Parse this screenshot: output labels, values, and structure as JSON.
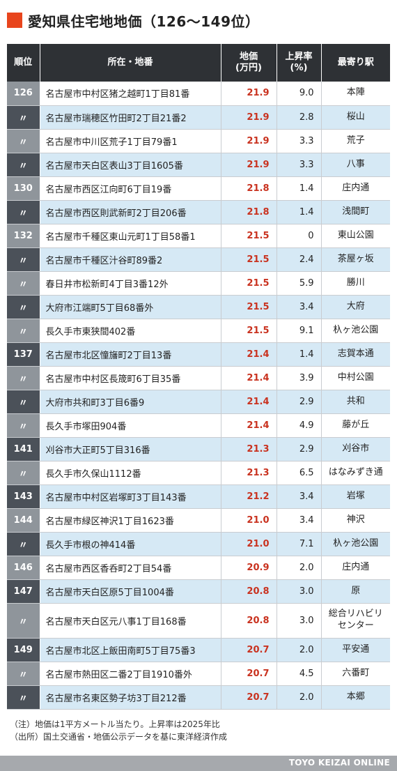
{
  "title": "愛知県住宅地地価（126～149位）",
  "headers": {
    "rank": "順位",
    "address": "所在・地番",
    "price_line1": "地価",
    "price_line2": "(万円)",
    "rate_line1": "上昇率",
    "rate_line2": "(%)",
    "station": "最寄り駅"
  },
  "rows": [
    {
      "rank": "126",
      "address": "名古屋市中村区猪之越町1丁目81番",
      "price": "21.9",
      "rate": "9.0",
      "station": "本陣"
    },
    {
      "rank": "〃",
      "address": "名古屋市瑞穂区竹田町2丁目21番2",
      "price": "21.9",
      "rate": "2.8",
      "station": "桜山"
    },
    {
      "rank": "〃",
      "address": "名古屋市中川区荒子1丁目79番1",
      "price": "21.9",
      "rate": "3.3",
      "station": "荒子"
    },
    {
      "rank": "〃",
      "address": "名古屋市天白区表山3丁目1605番",
      "price": "21.9",
      "rate": "3.3",
      "station": "八事"
    },
    {
      "rank": "130",
      "address": "名古屋市西区江向町6丁目19番",
      "price": "21.8",
      "rate": "1.4",
      "station": "庄内通"
    },
    {
      "rank": "〃",
      "address": "名古屋市西区則武新町2丁目206番",
      "price": "21.8",
      "rate": "1.4",
      "station": "浅間町"
    },
    {
      "rank": "132",
      "address": "名古屋市千種区東山元町1丁目58番1",
      "price": "21.5",
      "rate": "0",
      "station": "東山公園"
    },
    {
      "rank": "〃",
      "address": "名古屋市千種区汁谷町89番2",
      "price": "21.5",
      "rate": "2.4",
      "station": "茶屋ヶ坂"
    },
    {
      "rank": "〃",
      "address": "春日井市松新町4丁目3番12外",
      "price": "21.5",
      "rate": "5.9",
      "station": "勝川"
    },
    {
      "rank": "〃",
      "address": "大府市江端町5丁目68番外",
      "price": "21.5",
      "rate": "3.4",
      "station": "大府"
    },
    {
      "rank": "〃",
      "address": "長久手市東狭間402番",
      "price": "21.5",
      "rate": "9.1",
      "station": "杁ヶ池公園"
    },
    {
      "rank": "137",
      "address": "名古屋市北区憧旛町2丁目13番",
      "price": "21.4",
      "rate": "1.4",
      "station": "志賀本通"
    },
    {
      "rank": "〃",
      "address": "名古屋市中村区長筬町6丁目35番",
      "price": "21.4",
      "rate": "3.9",
      "station": "中村公園"
    },
    {
      "rank": "〃",
      "address": "大府市共和町3丁目6番9",
      "price": "21.4",
      "rate": "2.9",
      "station": "共和"
    },
    {
      "rank": "〃",
      "address": "長久手市塚田904番",
      "price": "21.4",
      "rate": "4.9",
      "station": "藤が丘"
    },
    {
      "rank": "141",
      "address": "刈谷市大正町5丁目316番",
      "price": "21.3",
      "rate": "2.9",
      "station": "刈谷市"
    },
    {
      "rank": "〃",
      "address": "長久手市久保山1112番",
      "price": "21.3",
      "rate": "6.5",
      "station": "はなみずき通"
    },
    {
      "rank": "143",
      "address": "名古屋市中村区岩塚町3丁目143番",
      "price": "21.2",
      "rate": "3.4",
      "station": "岩塚"
    },
    {
      "rank": "144",
      "address": "名古屋市緑区神沢1丁目1623番",
      "price": "21.0",
      "rate": "3.4",
      "station": "神沢"
    },
    {
      "rank": "〃",
      "address": "長久手市根の神414番",
      "price": "21.0",
      "rate": "7.1",
      "station": "杁ヶ池公園"
    },
    {
      "rank": "146",
      "address": "名古屋市西区香呑町2丁目54番",
      "price": "20.9",
      "rate": "2.0",
      "station": "庄内通"
    },
    {
      "rank": "147",
      "address": "名古屋市天白区原5丁目1004番",
      "price": "20.8",
      "rate": "3.0",
      "station": "原"
    },
    {
      "rank": "〃",
      "address": "名古屋市天白区元八事1丁目168番",
      "price": "20.8",
      "rate": "3.0",
      "station": "総合リハビリセンター",
      "station_line1": "総合リハビリ",
      "station_line2": "センター"
    },
    {
      "rank": "149",
      "address": "名古屋市北区上飯田南町5丁目75番3",
      "price": "20.7",
      "rate": "2.0",
      "station": "平安通"
    },
    {
      "rank": "〃",
      "address": "名古屋市熱田区二番2丁目1910番外",
      "price": "20.7",
      "rate": "4.5",
      "station": "六番町"
    },
    {
      "rank": "〃",
      "address": "名古屋市名東区勢子坊3丁目212番",
      "price": "20.7",
      "rate": "2.0",
      "station": "本郷"
    }
  ],
  "notes": {
    "note1": "（注）地価は1平方メートル当たり。上昇率は2025年比",
    "note2": "（出所）国土交通省・地価公示データを基に東洋経済作成"
  },
  "footer": "TOYO KEIZAI ONLINE",
  "colors": {
    "accent": "#e8451d",
    "header_bg": "#2e3135",
    "rank_light": "#8f959b",
    "rank_dark": "#4b5159",
    "row_alt": "#d6e9f5",
    "price_red": "#c9321f",
    "footer_bg": "#a6a9ad"
  }
}
